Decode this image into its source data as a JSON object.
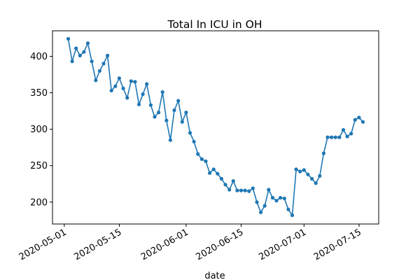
{
  "chart_data": {
    "type": "line",
    "title": "Total In ICU in OH",
    "xlabel": "date",
    "ylabel": "",
    "x_ticks": [
      "2020-05-01",
      "2020-05-15",
      "2020-06-01",
      "2020-06-15",
      "2020-07-01",
      "2020-07-15"
    ],
    "y_ticks": [
      200,
      250,
      300,
      350,
      400
    ],
    "xlim": [
      "2020-04-28",
      "2020-07-20"
    ],
    "ylim": [
      170,
      435
    ],
    "grid": false,
    "legend": "none",
    "series": [
      {
        "color": "#1f77b4",
        "marker": "circle",
        "x": [
          "2020-05-02",
          "2020-05-03",
          "2020-05-04",
          "2020-05-05",
          "2020-05-06",
          "2020-05-07",
          "2020-05-08",
          "2020-05-09",
          "2020-05-10",
          "2020-05-11",
          "2020-05-12",
          "2020-05-13",
          "2020-05-14",
          "2020-05-15",
          "2020-05-16",
          "2020-05-17",
          "2020-05-18",
          "2020-05-19",
          "2020-05-20",
          "2020-05-21",
          "2020-05-22",
          "2020-05-23",
          "2020-05-24",
          "2020-05-25",
          "2020-05-26",
          "2020-05-27",
          "2020-05-28",
          "2020-05-29",
          "2020-05-30",
          "2020-05-31",
          "2020-06-01",
          "2020-06-02",
          "2020-06-03",
          "2020-06-04",
          "2020-06-05",
          "2020-06-06",
          "2020-06-07",
          "2020-06-08",
          "2020-06-09",
          "2020-06-10",
          "2020-06-11",
          "2020-06-12",
          "2020-06-13",
          "2020-06-14",
          "2020-06-15",
          "2020-06-16",
          "2020-06-17",
          "2020-06-18",
          "2020-06-19",
          "2020-06-20",
          "2020-06-21",
          "2020-06-22",
          "2020-06-23",
          "2020-06-24",
          "2020-06-25",
          "2020-06-26",
          "2020-06-27",
          "2020-06-28",
          "2020-06-29",
          "2020-06-30",
          "2020-07-01",
          "2020-07-02",
          "2020-07-03",
          "2020-07-04",
          "2020-07-05",
          "2020-07-06",
          "2020-07-07",
          "2020-07-08",
          "2020-07-09",
          "2020-07-10",
          "2020-07-11",
          "2020-07-12",
          "2020-07-13",
          "2020-07-14",
          "2020-07-15",
          "2020-07-16"
        ],
        "values": [
          424,
          393,
          411,
          401,
          406,
          418,
          393,
          367,
          380,
          390,
          401,
          353,
          359,
          370,
          356,
          343,
          366,
          365,
          334,
          348,
          362,
          333,
          317,
          323,
          351,
          312,
          285,
          326,
          339,
          310,
          323,
          295,
          283,
          266,
          259,
          256,
          240,
          245,
          239,
          232,
          224,
          217,
          229,
          216,
          216,
          216,
          215,
          219,
          200,
          186,
          195,
          217,
          206,
          202,
          206,
          205,
          190,
          182,
          245,
          242,
          244,
          238,
          232,
          226,
          236,
          267,
          289,
          289,
          289,
          289,
          299,
          290,
          294,
          313,
          316,
          310
        ]
      }
    ]
  }
}
